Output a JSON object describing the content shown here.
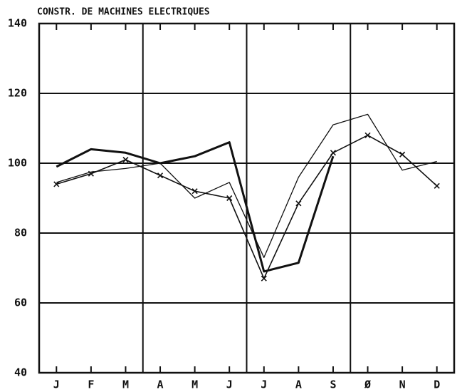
{
  "chart_data": {
    "type": "line",
    "title": "CONSTR. DE MACHINES ELECTRIQUES",
    "categories": [
      "J",
      "F",
      "M",
      "A",
      "M",
      "J",
      "J",
      "A",
      "S",
      "Ø",
      "N",
      "D"
    ],
    "series": [
      {
        "color": "#111111",
        "width": 3,
        "values": [
          99,
          104,
          103,
          100,
          102,
          106,
          69,
          71.5,
          102,
          null,
          null,
          null
        ]
      },
      {
        "color": "#111111",
        "width": 1.3,
        "values": [
          94.5,
          97.5,
          98.5,
          100,
          90,
          94.5,
          73,
          96,
          111,
          114,
          98,
          100.5
        ]
      },
      {
        "color": "#111111",
        "width": 1.6,
        "marker": "x",
        "values": [
          94,
          97,
          101,
          96.5,
          92,
          90,
          67,
          88.5,
          103,
          108,
          102.5,
          93.5
        ]
      }
    ],
    "ylim": [
      40,
      140
    ],
    "yticks": [
      40,
      60,
      80,
      100,
      120,
      140
    ],
    "grid": true
  }
}
